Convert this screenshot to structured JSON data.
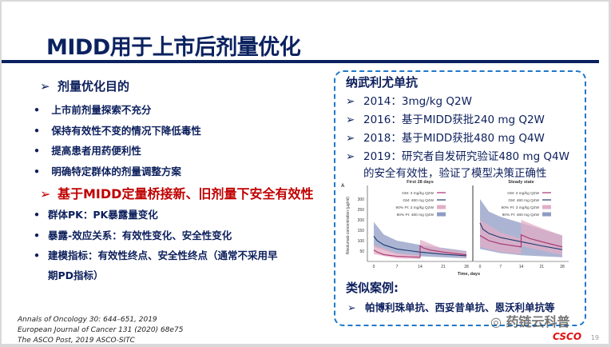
{
  "title": "MIDD用于上市后剂量优化",
  "left": {
    "heading1": "剂量优化目的",
    "items1": [
      "上市前剂量探索不充分",
      "保持有效性不变的情况下降低毒性",
      "提高患者用药便利性",
      "明确特定群体的剂量调整方案"
    ],
    "heading2": "基于MIDD定量桥接新、旧剂量下安全有效性",
    "items2": [
      "群体PK：PK暴露量变化",
      "暴露-效应关系：有效性变化、安全性变化",
      "建模指标：有效性终点、安全性终点（通常不采用早",
      "期PD指标）"
    ]
  },
  "right": {
    "title": "纳武利尤单抗",
    "items": [
      "2014：3mg/kg Q2W",
      "2016：基于MIDD获批240 mg Q2W",
      "2018：基于MIDD获批480 mg Q4W",
      "2019：研究者自发研究验证480 mg Q4W"
    ],
    "item4_cont": "的安全有效性，验证了模型决策正确性",
    "similar_title": "类似案例:",
    "similar_item": "帕博利珠单抗、西妥昔单抗、恩沃利单抗等"
  },
  "chart_data": {
    "type": "area",
    "panel_label": "A",
    "panels": [
      "First 28 days",
      "Steady state"
    ],
    "xlabel": "Time, days",
    "ylabel": "Nivolumab concentration (µg/ml)",
    "xticks": [
      0,
      7,
      14,
      21,
      28
    ],
    "yticks": [
      50,
      100,
      150,
      200,
      250,
      300
    ],
    "xlim": [
      0,
      28
    ],
    "ylim": [
      0,
      320
    ],
    "legend": [
      "GM: 3 mg/kg Q2W",
      "GM: 480 mg Q4W",
      "90% PI: 3 mg/kg Q2W",
      "90% PI: 480 mg Q4W"
    ],
    "colors": {
      "q2w": "#a8326e",
      "q4w": "#1f3a6e",
      "q2w_band": "#e2aec6",
      "q4w_band": "#8f9cc4"
    },
    "first28": {
      "gm_q2w": [
        [
          0,
          55
        ],
        [
          1,
          45
        ],
        [
          3,
          33
        ],
        [
          7,
          25
        ],
        [
          14,
          20
        ],
        [
          14,
          75
        ],
        [
          15,
          65
        ],
        [
          17,
          55
        ],
        [
          21,
          45
        ],
        [
          28,
          32
        ]
      ],
      "gm_q4w": [
        [
          0,
          122
        ],
        [
          1,
          100
        ],
        [
          3,
          80
        ],
        [
          7,
          60
        ],
        [
          14,
          45
        ],
        [
          21,
          35
        ],
        [
          28,
          27
        ]
      ],
      "pi_q2w_upper": [
        [
          0,
          80
        ],
        [
          7,
          40
        ],
        [
          14,
          30
        ],
        [
          14,
          105
        ],
        [
          21,
          60
        ],
        [
          28,
          45
        ]
      ],
      "pi_q2w_lower": [
        [
          0,
          35
        ],
        [
          7,
          15
        ],
        [
          14,
          12
        ],
        [
          14,
          50
        ],
        [
          28,
          20
        ]
      ],
      "pi_q4w_upper": [
        [
          0,
          190
        ],
        [
          3,
          130
        ],
        [
          7,
          100
        ],
        [
          14,
          80
        ],
        [
          21,
          65
        ],
        [
          28,
          50
        ]
      ],
      "pi_q4w_lower": [
        [
          0,
          70
        ],
        [
          7,
          35
        ],
        [
          14,
          25
        ],
        [
          28,
          15
        ]
      ]
    },
    "steady": {
      "gm_q2w": [
        [
          0,
          125
        ],
        [
          3,
          100
        ],
        [
          7,
          85
        ],
        [
          14,
          70
        ],
        [
          14,
          128
        ],
        [
          17,
          110
        ],
        [
          21,
          95
        ],
        [
          28,
          70
        ]
      ],
      "gm_q4w": [
        [
          0,
          185
        ],
        [
          1,
          155
        ],
        [
          3,
          135
        ],
        [
          7,
          115
        ],
        [
          14,
          95
        ],
        [
          21,
          75
        ],
        [
          28,
          57
        ]
      ],
      "pi_q2w_upper": [
        [
          0,
          200
        ],
        [
          7,
          140
        ],
        [
          14,
          110
        ],
        [
          14,
          200
        ],
        [
          21,
          160
        ],
        [
          28,
          125
        ]
      ],
      "pi_q2w_lower": [
        [
          0,
          70
        ],
        [
          7,
          45
        ],
        [
          14,
          35
        ],
        [
          14,
          75
        ],
        [
          28,
          30
        ]
      ],
      "pi_q4w_upper": [
        [
          0,
          300
        ],
        [
          3,
          240
        ],
        [
          7,
          215
        ],
        [
          14,
          185
        ],
        [
          21,
          155
        ],
        [
          28,
          125
        ]
      ],
      "pi_q4w_lower": [
        [
          0,
          60
        ],
        [
          7,
          40
        ],
        [
          14,
          30
        ],
        [
          28,
          20
        ]
      ]
    }
  },
  "references": [
    "Annals of Oncology 30: 644–651, 2019",
    "European Journal of Cancer 131 (2020) 68e75",
    "The ASCO Post, 2019 ASCO-SITC"
  ],
  "watermark": "药链云科普",
  "logo": "CSCO",
  "page_number": "19"
}
